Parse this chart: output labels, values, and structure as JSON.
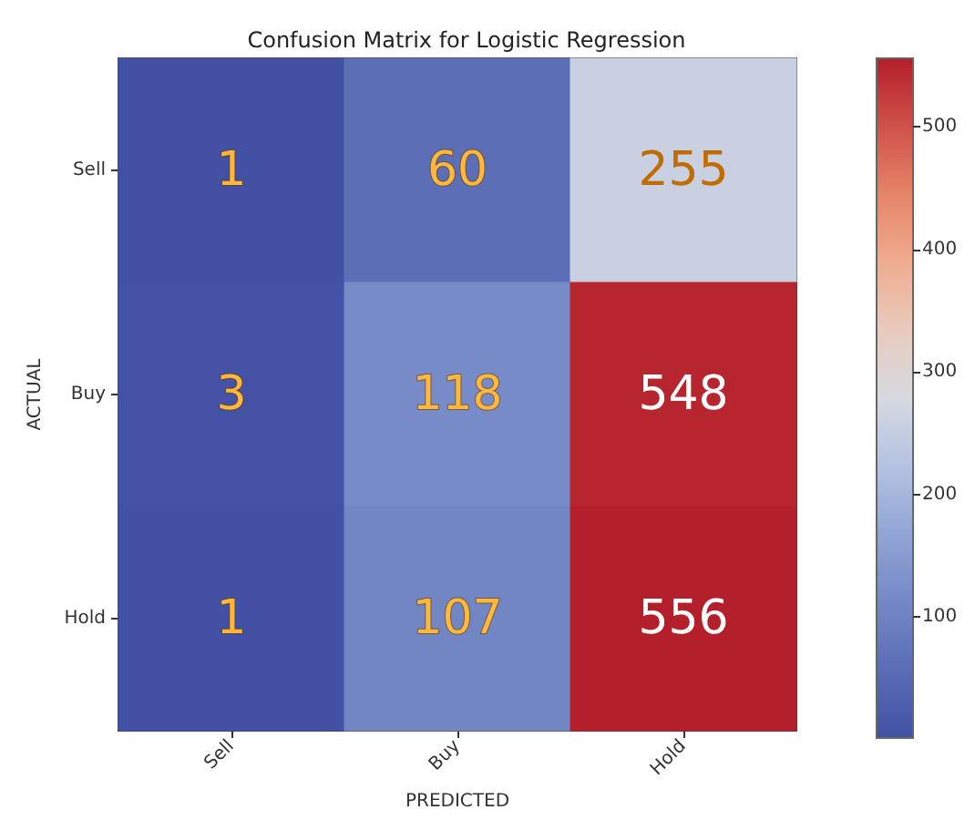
{
  "chart_data": {
    "type": "heatmap",
    "title": "Confusion Matrix for Logistic Regression",
    "xlabel": "PREDICTED",
    "ylabel": "ACTUAL",
    "categories": [
      "Sell",
      "Buy",
      "Hold"
    ],
    "y_categories": [
      "Sell",
      "Buy",
      "Hold"
    ],
    "cells": [
      [
        1,
        60,
        255
      ],
      [
        3,
        118,
        548
      ],
      [
        1,
        107,
        556
      ]
    ],
    "clim": [
      1,
      556
    ],
    "cticks": [
      100,
      200,
      300,
      400,
      500
    ],
    "data_labels": true
  }
}
